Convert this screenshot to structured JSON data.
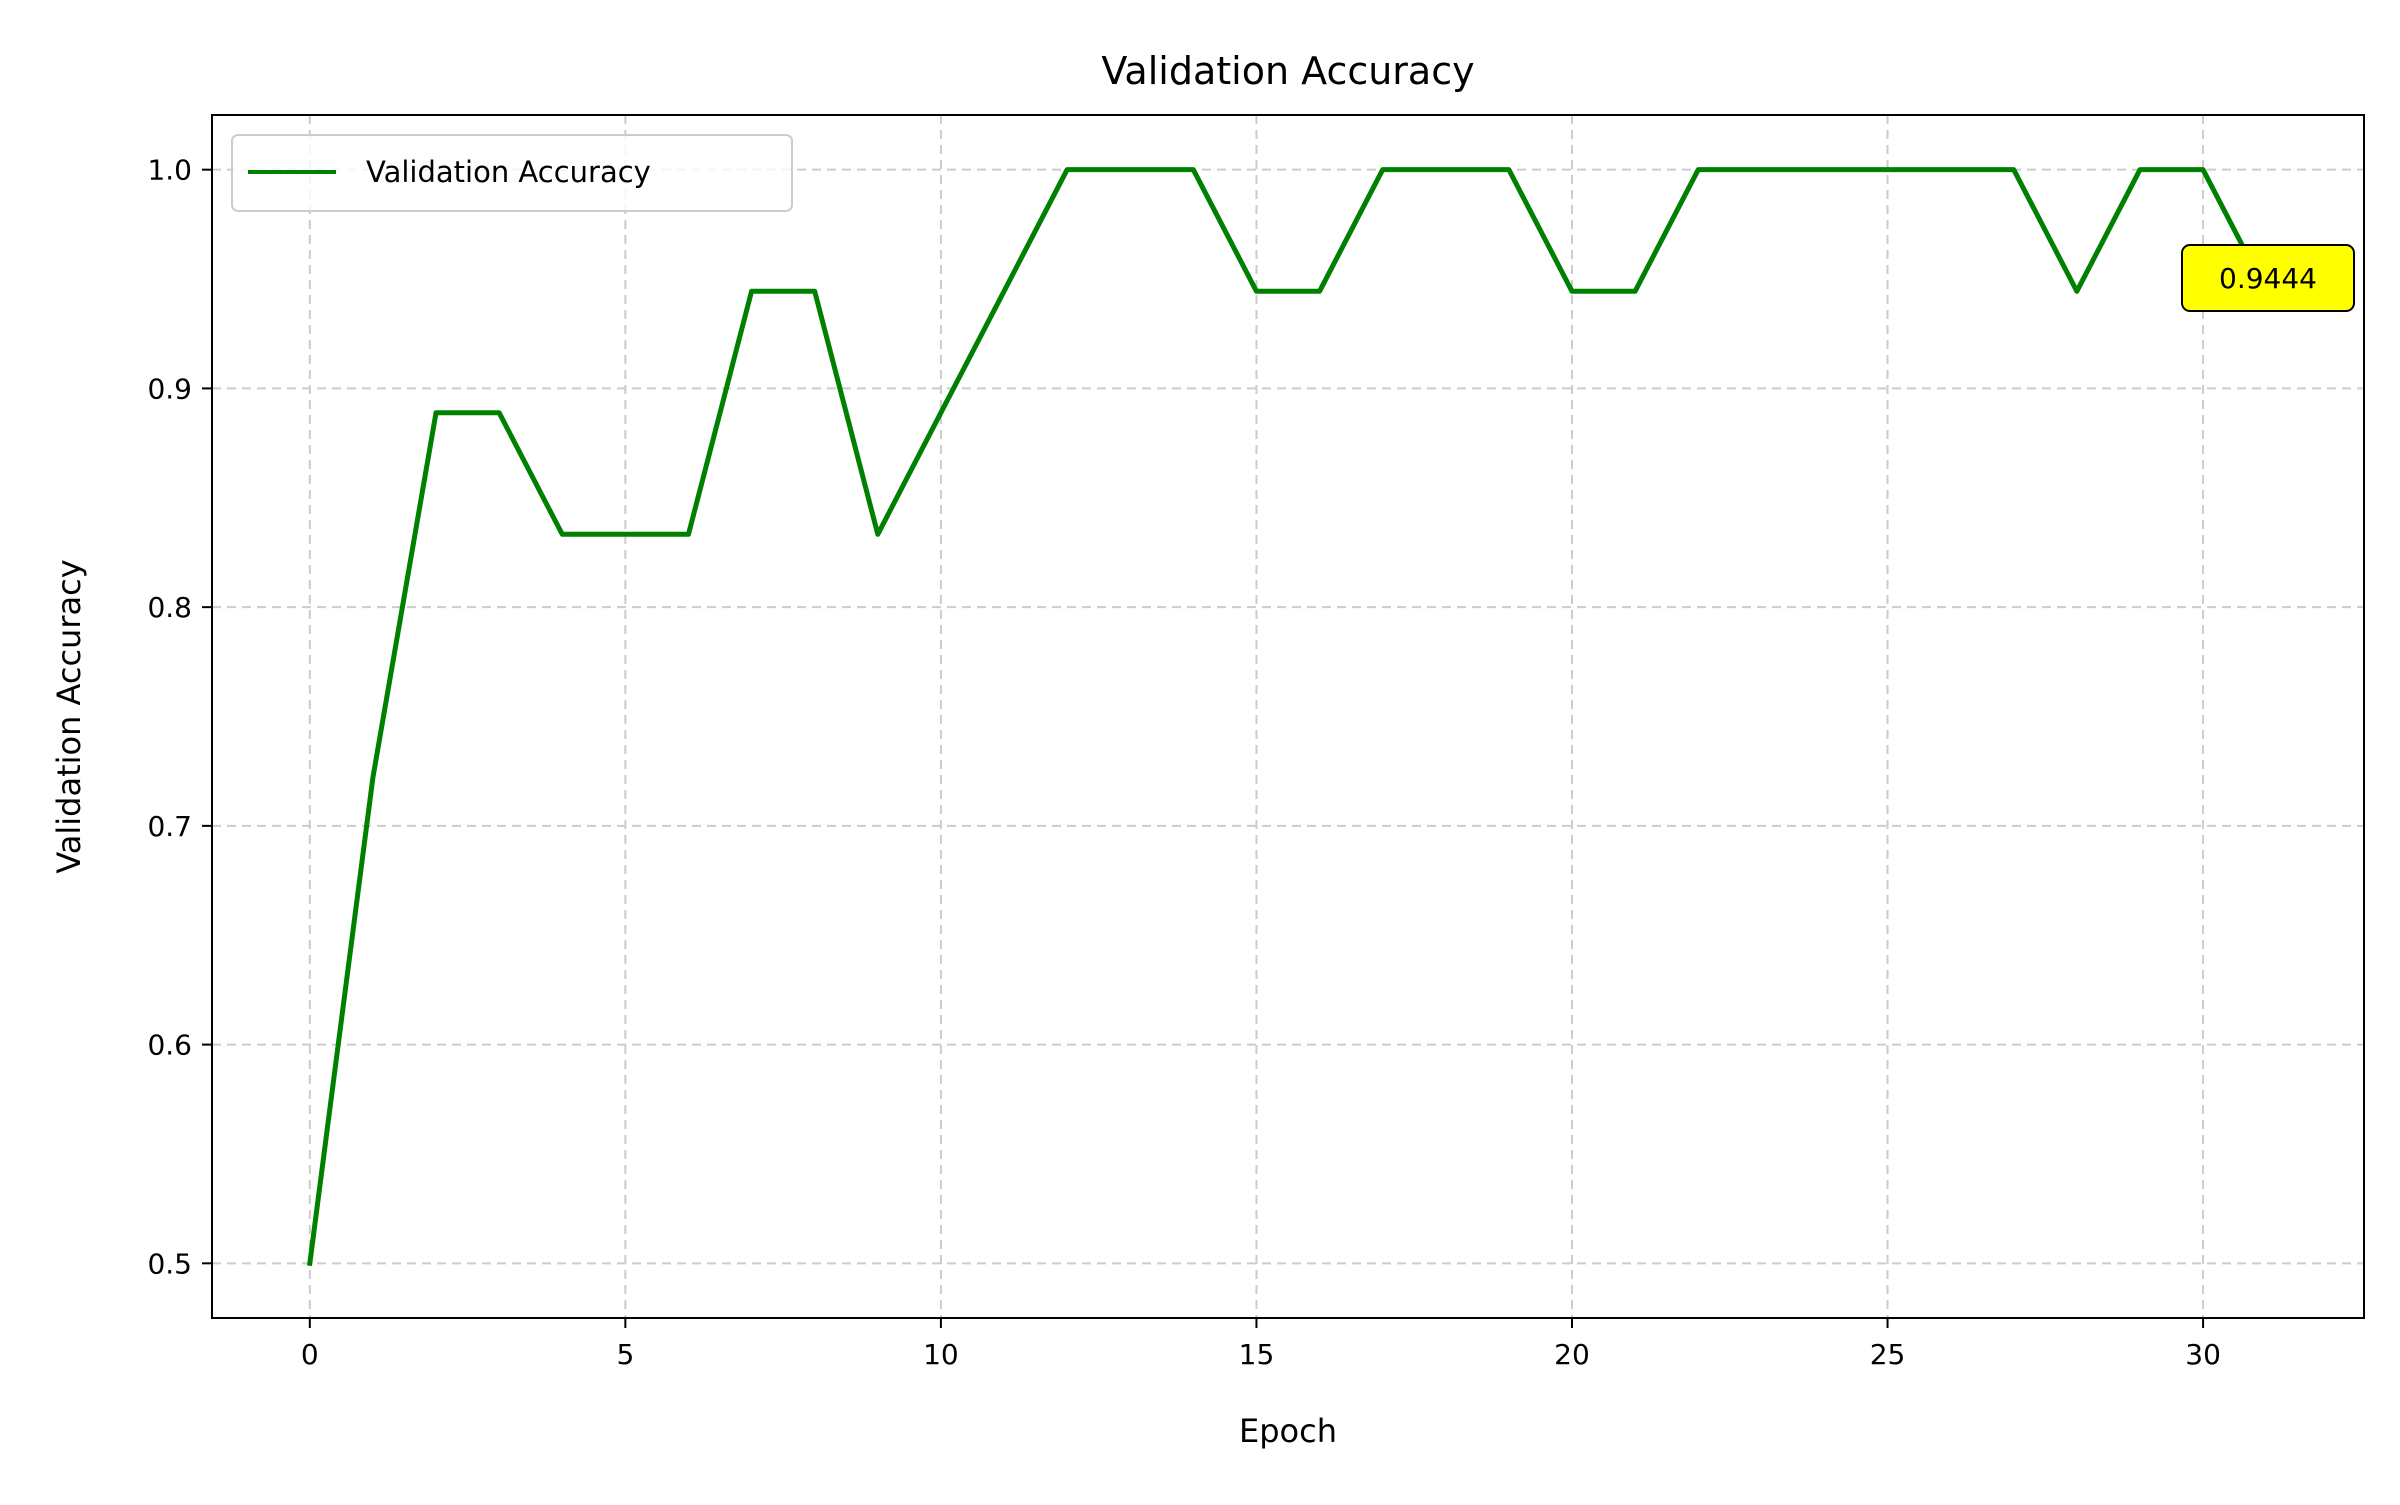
{
  "chart_data": {
    "type": "line",
    "title": "Validation Accuracy",
    "xlabel": "Epoch",
    "ylabel": "Validation Accuracy",
    "xlim": [
      -1.55,
      32.55
    ],
    "ylim": [
      0.475,
      1.025
    ],
    "x_ticks": [
      0,
      5,
      10,
      15,
      20,
      25,
      30
    ],
    "y_ticks": [
      0.5,
      0.6,
      0.7,
      0.8,
      0.9,
      1.0
    ],
    "grid": true,
    "legend": {
      "placement": "top-left",
      "entries": [
        "Validation Accuracy"
      ]
    },
    "series": [
      {
        "name": "Validation Accuracy",
        "color": "#008000",
        "x": [
          0,
          1,
          2,
          3,
          4,
          5,
          6,
          7,
          8,
          9,
          10,
          11,
          12,
          13,
          14,
          15,
          16,
          17,
          18,
          19,
          20,
          21,
          22,
          23,
          24,
          25,
          26,
          27,
          28,
          29,
          30,
          31
        ],
        "y": [
          0.5,
          0.7222,
          0.8889,
          0.8889,
          0.8333,
          0.8333,
          0.8333,
          0.9444,
          0.9444,
          0.8333,
          0.8889,
          0.9444,
          1.0,
          1.0,
          1.0,
          0.9444,
          0.9444,
          1.0,
          1.0,
          1.0,
          0.9444,
          0.9444,
          1.0,
          1.0,
          1.0,
          1.0,
          1.0,
          1.0,
          0.9444,
          1.0,
          1.0,
          0.9444
        ]
      }
    ],
    "annotations": [
      {
        "text": "0.9444",
        "x": 31,
        "y": 0.9444,
        "background": "#ffff00"
      }
    ]
  }
}
